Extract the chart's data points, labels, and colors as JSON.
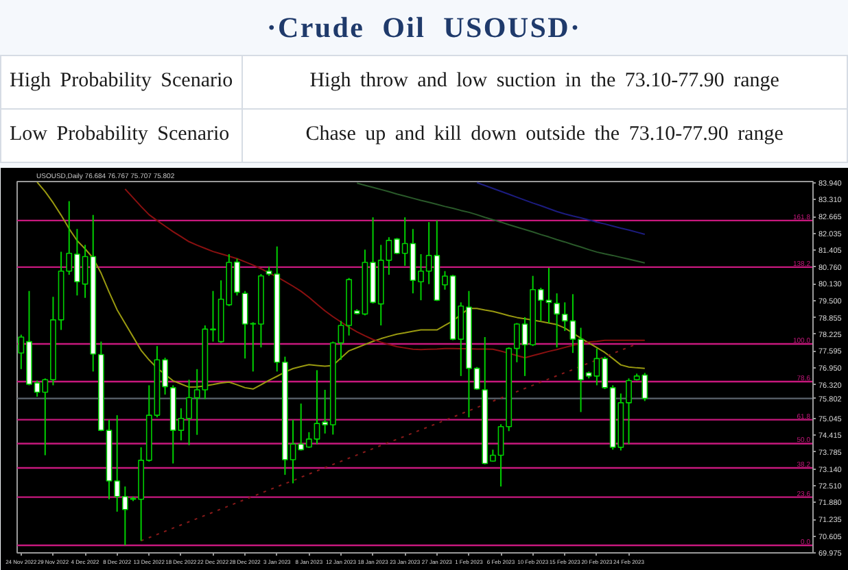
{
  "chart_data": {
    "type": "candlestick",
    "title": "·Crude  Oil  USOUSD·",
    "subtitle": "USOUSD,Daily 76.684 76.767 75.707 75.802",
    "annotations": [
      "High Probability Scenario",
      "High throw and low suction in the 73.10-77.90 range",
      "Low Probability Scenario",
      "Chase up and kill down outside the 73.10-77.90 range",
      {
        "text": "161.8",
        "y": 82.52
      },
      {
        "text": "138.2",
        "y": 80.76
      },
      {
        "text": "100.0",
        "y": 77.86
      },
      {
        "text": "78.6",
        "y": 76.44
      },
      {
        "text": "61.8",
        "y": 75.0
      },
      {
        "text": "50.0",
        "y": 74.1
      },
      {
        "text": "38.2",
        "y": 73.18
      },
      {
        "text": "23.6",
        "y": 72.08
      },
      {
        "text": "0.0",
        "y": 70.26
      }
    ],
    "categories": [
      "24 Nov 2022",
      null,
      null,
      null,
      "29 Nov 2022",
      null,
      null,
      null,
      "4 Dec 2022",
      null,
      null,
      null,
      "8 Dec 2022",
      null,
      null,
      null,
      "13 Dec 2022",
      null,
      null,
      null,
      "18 Dec 2022",
      null,
      null,
      null,
      "22 Dec 2022",
      null,
      null,
      null,
      "28 Dec 2022",
      null,
      null,
      null,
      "3 Jan 2023",
      null,
      null,
      null,
      "8 Jan 2023",
      null,
      null,
      null,
      "12 Jan 2023",
      null,
      null,
      null,
      "18 Jan 2023",
      null,
      null,
      null,
      "23 Jan 2023",
      null,
      null,
      null,
      "27 Jan 2023",
      null,
      null,
      null,
      "1 Feb 2023",
      null,
      null,
      null,
      "6 Feb 2023",
      null,
      null,
      null,
      "10 Feb 2023",
      null,
      null,
      null,
      "15 Feb 2023",
      null,
      null,
      null,
      "20 Feb 2023",
      null,
      null,
      null,
      "24 Feb 2023",
      null,
      null
    ],
    "ohlc": [
      [
        77.52,
        78.21,
        76.91,
        78.12
      ],
      [
        77.95,
        79.86,
        76.3,
        76.34
      ],
      [
        76.39,
        76.48,
        75.87,
        76.04
      ],
      [
        76.04,
        76.56,
        73.66,
        76.51
      ],
      [
        76.51,
        79.64,
        76.3,
        78.77
      ],
      [
        78.77,
        81.34,
        78.39,
        80.61
      ],
      [
        80.61,
        83.25,
        80.47,
        81.28
      ],
      [
        81.25,
        82.2,
        79.69,
        80.21
      ],
      [
        80.12,
        81.6,
        79.6,
        81.16
      ],
      [
        81.16,
        82.73,
        76.82,
        77.48
      ],
      [
        77.46,
        77.95,
        74.57,
        74.6
      ],
      [
        74.6,
        75.0,
        72.0,
        72.69
      ],
      [
        72.69,
        75.17,
        71.53,
        72.1
      ],
      [
        72.1,
        72.48,
        70.26,
        71.61
      ],
      [
        72.0,
        72.1,
        71.93,
        72.03
      ],
      [
        72.0,
        73.96,
        70.43,
        73.47
      ],
      [
        73.47,
        76.3,
        73.42,
        75.17
      ],
      [
        75.17,
        77.78,
        75.09,
        77.26
      ],
      [
        77.26,
        77.34,
        75.95,
        76.25
      ],
      [
        76.21,
        76.3,
        73.35,
        74.6
      ],
      [
        74.6,
        75.43,
        74.22,
        75.05
      ],
      [
        75.05,
        76.51,
        74.04,
        75.83
      ],
      [
        75.83,
        76.91,
        74.43,
        76.13
      ],
      [
        76.13,
        78.56,
        75.78,
        78.42
      ],
      [
        78.42,
        79.86,
        77.95,
        78.39
      ],
      [
        77.95,
        80.26,
        77.9,
        79.55
      ],
      [
        79.34,
        81.25,
        79.29,
        80.94
      ],
      [
        80.95,
        81.08,
        79.69,
        79.81
      ],
      [
        79.77,
        79.86,
        77.31,
        78.61
      ],
      [
        78.61,
        78.68,
        76.82,
        78.63
      ],
      [
        78.61,
        80.5,
        77.73,
        80.43
      ],
      [
        80.61,
        80.78,
        80.43,
        80.5
      ],
      [
        80.5,
        81.54,
        76.82,
        77.17
      ],
      [
        77.17,
        77.38,
        72.92,
        73.49
      ],
      [
        73.49,
        75.0,
        72.6,
        74.08
      ],
      [
        74.08,
        75.61,
        73.84,
        73.87
      ],
      [
        73.97,
        74.53,
        73.94,
        74.27
      ],
      [
        74.27,
        76.87,
        74.08,
        74.86
      ],
      [
        74.91,
        76.13,
        74.48,
        74.81
      ],
      [
        74.81,
        77.95,
        74.44,
        77.9
      ],
      [
        77.9,
        78.73,
        77.26,
        78.56
      ],
      [
        78.56,
        80.35,
        78.18,
        80.29
      ],
      [
        79.11,
        79.17,
        78.98,
        79.01
      ],
      [
        78.99,
        81.42,
        78.94,
        80.94
      ],
      [
        80.94,
        82.64,
        79.39,
        79.43
      ],
      [
        79.37,
        81.6,
        78.56,
        81.02
      ],
      [
        81.02,
        81.89,
        80.47,
        81.77
      ],
      [
        81.82,
        81.86,
        81.25,
        81.28
      ],
      [
        81.28,
        82.64,
        80.81,
        81.65
      ],
      [
        81.65,
        82.2,
        79.77,
        80.26
      ],
      [
        80.21,
        81.25,
        79.51,
        80.61
      ],
      [
        80.61,
        82.46,
        80.12,
        81.2
      ],
      [
        81.2,
        82.52,
        79.48,
        79.51
      ],
      [
        80.09,
        80.61,
        79.91,
        80.42
      ],
      [
        80.43,
        80.47,
        78.0,
        78.04
      ],
      [
        78.04,
        79.43,
        76.65,
        79.29
      ],
      [
        79.25,
        79.86,
        75.09,
        76.94
      ],
      [
        76.94,
        76.99,
        76.13,
        76.16
      ],
      [
        76.13,
        78.12,
        73.32,
        73.35
      ],
      [
        73.44,
        73.87,
        73.42,
        73.66
      ],
      [
        73.66,
        74.83,
        72.48,
        74.74
      ],
      [
        74.74,
        77.73,
        74.57,
        77.69
      ],
      [
        77.69,
        78.65,
        77.17,
        78.61
      ],
      [
        78.61,
        78.87,
        76.65,
        77.83
      ],
      [
        77.83,
        80.43,
        77.78,
        79.91
      ],
      [
        79.91,
        79.98,
        78.73,
        79.51
      ],
      [
        79.51,
        80.73,
        78.65,
        79.43
      ],
      [
        79.39,
        79.77,
        77.73,
        78.99
      ],
      [
        78.98,
        79.43,
        78.35,
        78.73
      ],
      [
        78.73,
        79.74,
        77.52,
        78.04
      ],
      [
        78.04,
        78.47,
        75.29,
        76.51
      ],
      [
        76.77,
        76.82,
        76.56,
        76.65
      ],
      [
        76.65,
        77.69,
        76.3,
        77.31
      ],
      [
        77.31,
        77.38,
        76.16,
        76.21
      ],
      [
        76.21,
        76.3,
        73.87,
        73.96
      ],
      [
        73.96,
        75.99,
        73.84,
        75.64
      ],
      [
        75.64,
        76.56,
        74.08,
        76.48
      ],
      [
        76.51,
        76.74,
        76.48,
        76.65
      ],
      [
        76.684,
        76.767,
        75.707,
        75.802
      ]
    ],
    "color": "#00d000",
    "colors": [
      "#000000",
      "#ffffff",
      "#ffffff",
      "#000000",
      "#000000",
      "#000000",
      "#000000",
      "#ffffff",
      "#000000",
      "#ffffff",
      "#ffffff",
      "#ffffff",
      "#ffffff",
      "#ffffff",
      "#000000",
      "#000000",
      "#000000",
      "#000000",
      "#ffffff",
      "#ffffff",
      "#000000",
      "#000000",
      "#000000",
      "#000000",
      "#ffffff",
      "#000000",
      "#000000",
      "#ffffff",
      "#ffffff",
      "#000000",
      "#000000",
      "#ffffff",
      "#ffffff",
      "#ffffff",
      "#000000",
      "#ffffff",
      "#000000",
      "#000000",
      "#ffffff",
      "#000000",
      "#000000",
      "#000000",
      "#ffffff",
      "#000000",
      "#ffffff",
      "#000000",
      "#000000",
      "#ffffff",
      "#000000",
      "#ffffff",
      "#000000",
      "#000000",
      "#ffffff",
      "#000000",
      "#ffffff",
      "#000000",
      "#ffffff",
      "#ffffff",
      "#ffffff",
      "#000000",
      "#000000",
      "#000000",
      "#000000",
      "#ffffff",
      "#000000",
      "#ffffff",
      "#ffffff",
      "#ffffff",
      "#ffffff",
      "#ffffff",
      "#ffffff",
      "#ffffff",
      "#000000",
      "#ffffff",
      "#ffffff",
      "#000000",
      "#000000",
      "#000000",
      "#ffffff"
    ],
    "series": [
      {
        "type": "line",
        "color": "#9a9a10",
        "values": [
          null,
          null,
          83.97,
          83.61,
          83.19,
          82.72,
          82.21,
          81.76,
          81.45,
          81.1,
          80.53,
          79.82,
          79.15,
          78.64,
          78.13,
          77.62,
          77.26,
          76.95,
          76.71,
          76.47,
          76.35,
          76.23,
          76.24,
          76.28,
          76.33,
          76.39,
          76.42,
          76.32,
          76.21,
          76.16,
          76.32,
          76.49,
          76.64,
          76.8,
          76.93,
          77.01,
          77.08,
          77.05,
          77.02,
          77.05,
          77.33,
          77.6,
          77.72,
          77.84,
          77.96,
          78.06,
          78.15,
          78.23,
          78.28,
          78.34,
          78.39,
          78.39,
          78.39,
          78.56,
          78.73,
          78.97,
          79.2,
          79.2,
          79.14,
          79.09,
          79.01,
          78.93,
          78.86,
          78.81,
          78.76,
          78.71,
          78.65,
          78.59,
          78.46,
          78.27,
          78.08,
          77.9,
          77.72,
          77.54,
          77.31,
          77.07,
          76.99,
          76.96,
          76.94
        ]
      },
      {
        "type": "line",
        "color": "#8a1010",
        "values": [
          null,
          null,
          null,
          null,
          null,
          null,
          null,
          null,
          null,
          null,
          null,
          null,
          null,
          83.71,
          83.38,
          83.05,
          82.74,
          82.52,
          82.31,
          82.1,
          81.91,
          81.72,
          81.59,
          81.47,
          81.35,
          81.26,
          81.17,
          81.08,
          80.96,
          80.84,
          80.7,
          80.54,
          80.39,
          80.22,
          80.04,
          79.85,
          79.62,
          79.36,
          79.11,
          78.89,
          78.69,
          78.49,
          78.32,
          78.17,
          78.03,
          77.93,
          77.84,
          77.76,
          77.71,
          77.66,
          77.65,
          77.66,
          77.67,
          77.69,
          77.69,
          77.68,
          77.68,
          77.67,
          77.67,
          77.66,
          77.59,
          77.51,
          77.42,
          77.34,
          77.42,
          77.5,
          77.58,
          77.65,
          77.73,
          77.81,
          77.88,
          77.93,
          77.96,
          78.0,
          78.0,
          78.0,
          78.0,
          78.0,
          78.0
        ]
      },
      {
        "type": "line",
        "color": "#2a5a2a",
        "values": [
          null,
          null,
          null,
          null,
          null,
          null,
          null,
          null,
          null,
          null,
          null,
          null,
          null,
          null,
          null,
          null,
          null,
          null,
          null,
          null,
          null,
          null,
          null,
          null,
          null,
          null,
          null,
          null,
          null,
          null,
          null,
          null,
          null,
          null,
          null,
          null,
          null,
          null,
          null,
          null,
          null,
          null,
          83.93,
          83.85,
          83.77,
          83.69,
          83.61,
          83.52,
          83.44,
          83.36,
          83.28,
          83.21,
          83.13,
          83.05,
          82.98,
          82.9,
          82.83,
          82.74,
          82.64,
          82.55,
          82.46,
          82.36,
          82.27,
          82.18,
          82.09,
          81.99,
          81.9,
          81.8,
          81.71,
          81.61,
          81.52,
          81.42,
          81.33,
          81.26,
          81.2,
          81.13,
          81.06,
          80.99,
          80.92
        ]
      },
      {
        "type": "line",
        "color": "#1c1c80",
        "values": [
          null,
          null,
          null,
          null,
          null,
          null,
          null,
          null,
          null,
          null,
          null,
          null,
          null,
          null,
          null,
          null,
          null,
          null,
          null,
          null,
          null,
          null,
          null,
          null,
          null,
          null,
          null,
          null,
          null,
          null,
          null,
          null,
          null,
          null,
          null,
          null,
          null,
          null,
          null,
          null,
          null,
          null,
          null,
          null,
          null,
          null,
          null,
          null,
          null,
          null,
          null,
          null,
          null,
          null,
          null,
          null,
          null,
          83.95,
          83.84,
          83.73,
          83.62,
          83.51,
          83.4,
          83.29,
          83.18,
          83.08,
          82.97,
          82.86,
          82.77,
          82.69,
          82.62,
          82.54,
          82.46,
          82.39,
          82.31,
          82.23,
          82.16,
          82.08,
          82.0
        ]
      },
      {
        "type": "line",
        "color": "#8a1a1a",
        "line_style": "dotted",
        "values": [
          null,
          null,
          null,
          null,
          null,
          null,
          null,
          null,
          null,
          null,
          null,
          null,
          null,
          null,
          null,
          70.43,
          70.55,
          70.67,
          70.79,
          70.91,
          71.03,
          71.15,
          71.27,
          71.39,
          71.51,
          71.63,
          71.75,
          71.87,
          71.99,
          72.11,
          72.23,
          72.35,
          72.47,
          72.59,
          72.7,
          72.83,
          72.95,
          73.07,
          73.19,
          73.31,
          73.43,
          73.55,
          73.67,
          73.79,
          73.91,
          74.03,
          74.15,
          74.26,
          74.38,
          74.5,
          74.62,
          74.74,
          74.86,
          74.98,
          75.1,
          75.22,
          75.34,
          75.46,
          75.58,
          75.7,
          75.82,
          75.94,
          76.06,
          76.18,
          76.3,
          76.42,
          76.54,
          76.66,
          76.78,
          76.89,
          77.02,
          77.14,
          77.26,
          77.38,
          77.5,
          77.62,
          77.74,
          77.86,
          null
        ]
      }
    ],
    "ylim": [
      69.975,
      83.99
    ],
    "yticks": [
      {
        "value": 83.94,
        "label": "83.940"
      },
      {
        "value": 83.31,
        "label": "83.310"
      },
      {
        "value": 82.665,
        "label": "82.665"
      },
      {
        "value": 82.035,
        "label": "82.035"
      },
      {
        "value": 81.405,
        "label": "81.405"
      },
      {
        "value": 80.76,
        "label": "80.760"
      },
      {
        "value": 80.13,
        "label": "80.130"
      },
      {
        "value": 79.5,
        "label": "79.500"
      },
      {
        "value": 78.855,
        "label": "78.855"
      },
      {
        "value": 78.225,
        "label": "78.225"
      },
      {
        "value": 77.595,
        "label": "77.595"
      },
      {
        "value": 76.95,
        "label": "76.950"
      },
      {
        "value": 76.32,
        "label": "76.320"
      },
      {
        "value": 75.802,
        "label": "75.802"
      },
      {
        "value": 75.045,
        "label": "75.045"
      },
      {
        "value": 74.415,
        "label": "74.415"
      },
      {
        "value": 73.785,
        "label": "73.785"
      },
      {
        "value": 73.14,
        "label": "73.140"
      },
      {
        "value": 72.51,
        "label": "72.510"
      },
      {
        "value": 71.88,
        "label": "71.880"
      },
      {
        "value": 71.235,
        "label": "71.235"
      },
      {
        "value": 70.605,
        "label": "70.605"
      },
      {
        "value": 69.975,
        "label": "69.975"
      }
    ],
    "ref_lines": [
      {
        "axis": "y",
        "value": 82.52,
        "color": "#c8187e"
      },
      {
        "axis": "y",
        "value": 80.76,
        "color": "#c8187e"
      },
      {
        "axis": "y",
        "value": 77.86,
        "color": "#c8187e"
      },
      {
        "axis": "y",
        "value": 76.44,
        "color": "#c8187e"
      },
      {
        "axis": "y",
        "value": 75.0,
        "color": "#c8187e"
      },
      {
        "axis": "y",
        "value": 74.1,
        "color": "#c8187e"
      },
      {
        "axis": "y",
        "value": 73.18,
        "color": "#c8187e"
      },
      {
        "axis": "y",
        "value": 72.08,
        "color": "#c8187e"
      },
      {
        "axis": "y",
        "value": 70.26,
        "color": "#c8187e"
      },
      {
        "axis": "y",
        "value": 75.802,
        "color": "#5c646e"
      }
    ]
  }
}
